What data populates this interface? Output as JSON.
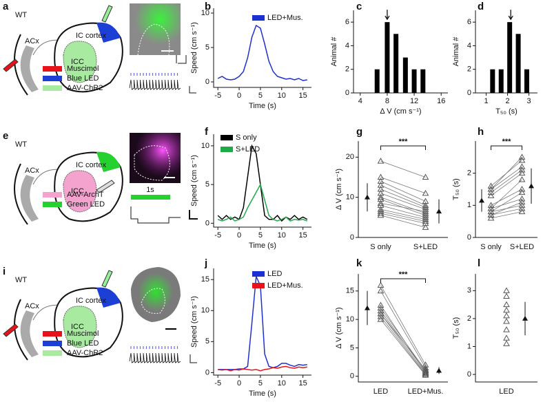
{
  "diagrams": [
    {
      "label": "a",
      "genotype": "WT",
      "regions": [
        "ACx",
        "IC cortex",
        "ICC"
      ],
      "legend": [
        {
          "name": "Muscimol",
          "color": "#e8121a"
        },
        {
          "name": "Blue LED",
          "color": "#1c3fd6"
        },
        {
          "name": "AAV-ChR2",
          "color": "#a8eaa0"
        }
      ]
    },
    {
      "label": "e",
      "genotype": "WT",
      "regions": [
        "ACx",
        "IC cortex",
        "ICC"
      ],
      "legend": [
        {
          "name": "AAV-ArchT",
          "color": "#f4a3cf"
        },
        {
          "name": "Green LED",
          "color": "#24d12e"
        }
      ],
      "timebar": "1s"
    },
    {
      "label": "i",
      "genotype": "WT",
      "regions": [
        "ACx",
        "IC cortex",
        "ICC"
      ],
      "legend": [
        {
          "name": "Muscimol",
          "color": "#e8121a"
        },
        {
          "name": "Blue LED",
          "color": "#1c3fd6"
        },
        {
          "name": "AAV-ChR2",
          "color": "#a8eaa0"
        }
      ]
    }
  ],
  "chart_data": [
    {
      "type": "line",
      "label": "b",
      "xlabel": "Time (s)",
      "ylabel": "Speed (cm s⁻¹)",
      "x": [
        -5,
        -4,
        -3,
        -2,
        -1,
        0,
        1,
        2,
        3,
        4,
        5,
        6,
        7,
        8,
        9,
        10,
        11,
        12,
        13,
        14,
        15,
        16
      ],
      "series": [
        {
          "name": "LED+Mus.",
          "color": "#1c2fd0",
          "values": [
            0.5,
            0.8,
            0.4,
            0.3,
            0.4,
            0.8,
            1.5,
            3.5,
            6.5,
            8.2,
            7.8,
            5.5,
            3,
            1.5,
            0.8,
            0.6,
            0.4,
            0.5,
            0.3,
            0.5,
            0.2,
            0.3
          ]
        }
      ],
      "xlim": [
        -6,
        17
      ],
      "xticks": [
        -5,
        0,
        5,
        10,
        15
      ],
      "ylim": [
        -0.8,
        10.7
      ],
      "yticks": [
        0,
        5,
        10
      ]
    },
    {
      "type": "bar",
      "label": "c",
      "xlabel": "Δ V (cm s⁻¹)",
      "ylabel": "Animal #",
      "x": [
        6.5,
        8,
        9.3,
        10.7,
        12,
        13.3
      ],
      "values": [
        2,
        6,
        5,
        3,
        2,
        2
      ],
      "color": "#000000",
      "arrow_x": 8,
      "xlim": [
        3,
        17
      ],
      "xticks": [
        4,
        8,
        12,
        16
      ],
      "ylim": [
        0,
        7
      ],
      "yticks": [
        0,
        2,
        4,
        6
      ]
    },
    {
      "type": "bar",
      "label": "d",
      "xlabel": "T₅₀ (s)",
      "ylabel": "Animal #",
      "x": [
        1.3,
        1.7,
        2.1,
        2.5,
        2.9
      ],
      "values": [
        2,
        2,
        6,
        5,
        2
      ],
      "color": "#000000",
      "arrow_x": 2.15,
      "xlim": [
        0.5,
        3.4
      ],
      "xticks": [
        1,
        2,
        3
      ],
      "ylim": [
        0,
        7
      ],
      "yticks": [
        0,
        2,
        4,
        6
      ]
    },
    {
      "type": "line",
      "label": "f",
      "xlabel": "Time (s)",
      "ylabel": "Speed (cm s⁻¹)",
      "x": [
        -5,
        -4,
        -3,
        -2,
        -1,
        0,
        1,
        2,
        3,
        4,
        5,
        6,
        7,
        8,
        9,
        10,
        11,
        12,
        13,
        14,
        15,
        16
      ],
      "series": [
        {
          "name": "S only",
          "color": "#000000",
          "values": [
            1,
            0.5,
            1,
            0.5,
            0.8,
            0.5,
            2,
            6,
            10,
            9,
            5,
            1,
            0.5,
            0.5,
            1,
            0.3,
            0.8,
            0.5,
            1,
            0.5,
            0.8,
            0.5
          ]
        },
        {
          "name": "S+LED",
          "color": "#1faa4a",
          "values": [
            0.5,
            0.3,
            0.5,
            0.8,
            0.3,
            0.5,
            0.8,
            2,
            3,
            4,
            5,
            3,
            1,
            0.5,
            0.3,
            0.5,
            0.8,
            0.3,
            0.5,
            0.4,
            0.5,
            0.3
          ]
        }
      ],
      "xlim": [
        -6,
        17
      ],
      "xticks": [
        -5,
        0,
        5,
        10,
        15
      ],
      "ylim": [
        -0.5,
        11.5
      ],
      "yticks": [
        0,
        5,
        10
      ]
    },
    {
      "type": "scatter",
      "label": "g",
      "ylabel": "Δ V (cm s⁻¹)",
      "categories": [
        "S only",
        "S+LED"
      ],
      "annotation": "***",
      "values": [
        [
          19,
          15
        ],
        [
          15,
          11
        ],
        [
          14,
          9
        ],
        [
          13,
          8
        ],
        [
          12,
          7.5
        ],
        [
          11,
          7
        ],
        [
          10,
          6
        ],
        [
          9.5,
          5.5
        ],
        [
          8,
          5
        ],
        [
          7,
          4.5
        ],
        [
          6.5,
          4
        ],
        [
          6,
          3.5
        ],
        [
          5.5,
          2.5
        ],
        [
          8.5,
          6.5
        ]
      ],
      "means": [
        {
          "value": 10,
          "error": 3.5
        },
        {
          "value": 6.5,
          "error": 3
        }
      ],
      "ylim": [
        0,
        24
      ],
      "yticks": [
        0,
        10,
        20
      ]
    },
    {
      "type": "scatter",
      "label": "h",
      "ylabel": "T₅₀ (s)",
      "categories": [
        "S only",
        "S+LED"
      ],
      "annotation": "***",
      "values": [
        [
          1.5,
          2.5
        ],
        [
          1.6,
          2.4
        ],
        [
          1.5,
          2.2
        ],
        [
          1.4,
          2.1
        ],
        [
          1.3,
          2.0
        ],
        [
          0.9,
          1.8
        ],
        [
          0.8,
          1.4
        ],
        [
          0.9,
          1.2
        ],
        [
          0.7,
          1.1
        ],
        [
          0.8,
          1.0
        ],
        [
          0.7,
          0.9
        ],
        [
          1.0,
          1.5
        ],
        [
          0.6,
          0.8
        ]
      ],
      "means": [
        {
          "value": 1.15,
          "error": 0.35
        },
        {
          "value": 1.6,
          "error": 0.55
        }
      ],
      "ylim": [
        0,
        3
      ],
      "yticks": [
        0,
        1,
        2
      ]
    },
    {
      "type": "line",
      "label": "j",
      "xlabel": "Time (s)",
      "ylabel": "Speed (cm s⁻¹)",
      "x": [
        -5,
        -4,
        -3,
        -2,
        -1,
        0,
        1,
        2,
        3,
        4,
        5,
        6,
        7,
        8,
        9,
        10,
        11,
        12,
        13,
        14,
        15,
        16
      ],
      "series": [
        {
          "name": "LED",
          "color": "#1c2fd0",
          "values": [
            0.5,
            0.5,
            0.5,
            0.5,
            0.5,
            0.6,
            0.6,
            1,
            8,
            15.5,
            14,
            3,
            1,
            0.8,
            1,
            1.5,
            1.5,
            1.2,
            1,
            1.3,
            1.2,
            1.3
          ]
        },
        {
          "name": "LED+Mus.",
          "color": "#e8121a",
          "values": [
            0.5,
            0.4,
            0.5,
            0.3,
            0.5,
            0.4,
            0.6,
            0.5,
            0.4,
            0.5,
            0.3,
            0.5,
            0.6,
            0.8,
            0.7,
            0.9,
            1,
            0.8,
            0.7,
            0.9,
            0.8,
            0.9
          ]
        }
      ],
      "xlim": [
        -6,
        17
      ],
      "xticks": [
        -5,
        0,
        5,
        10,
        15
      ],
      "ylim": [
        -0.4,
        16.8
      ],
      "yticks": [
        0,
        5,
        10,
        15
      ]
    },
    {
      "type": "scatter",
      "label": "k",
      "ylabel": "Δ V (cm s⁻¹)",
      "categories": [
        "LED",
        "LED+Mus."
      ],
      "annotation": "***",
      "values": [
        [
          16,
          2
        ],
        [
          15,
          1.5
        ],
        [
          12,
          1
        ],
        [
          11.5,
          0.8
        ],
        [
          11,
          0.5
        ],
        [
          10.5,
          0.3
        ],
        [
          11,
          1.2
        ],
        [
          10,
          0.2
        ],
        [
          12.5,
          0.6
        ]
      ],
      "means": [
        {
          "value": 12,
          "error": 3
        },
        {
          "value": 1,
          "error": 0.6
        }
      ],
      "ylim": [
        -1,
        18
      ],
      "yticks": [
        0,
        5,
        10,
        15
      ]
    },
    {
      "type": "scatter",
      "label": "l",
      "ylabel": "T₅₀ (s)",
      "categories": [
        "LED"
      ],
      "values": [
        [
          3
        ],
        [
          2.8
        ],
        [
          2.5
        ],
        [
          2.3
        ],
        [
          2.1
        ],
        [
          1.9
        ],
        [
          1.6
        ],
        [
          1.3
        ],
        [
          1.1
        ]
      ],
      "means": [
        {
          "value": 2,
          "error": 0.6
        }
      ],
      "ylim": [
        -0.27,
        3.6
      ],
      "yticks": [
        0,
        1,
        2,
        3
      ]
    }
  ]
}
